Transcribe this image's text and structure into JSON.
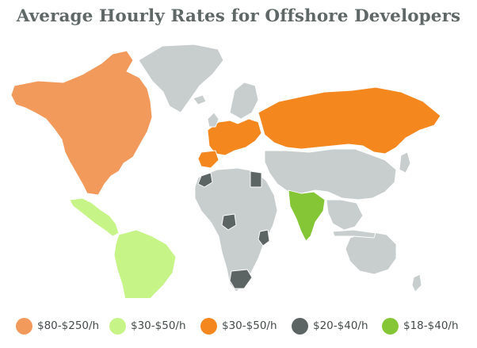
{
  "title": "Average Hourly Rates for Offshore Developers",
  "colors": {
    "north_america": "#F29A5C",
    "latin_america": "#C7F487",
    "europe_russia": "#F5871F",
    "africa_focus": "#5D6564",
    "india": "#84C636",
    "neutral_land": "#C8CDCD",
    "border": "#ffffff"
  },
  "legend": [
    {
      "label": "$80-$250/h",
      "color": "#F29A5C"
    },
    {
      "label": "$30-$50/h",
      "color": "#C7F487"
    },
    {
      "label": "$30-$50/h",
      "color": "#F5871F"
    },
    {
      "label": "$20-$40/h",
      "color": "#5D6564"
    },
    {
      "label": "$18-$40/h",
      "color": "#84C636"
    }
  ]
}
